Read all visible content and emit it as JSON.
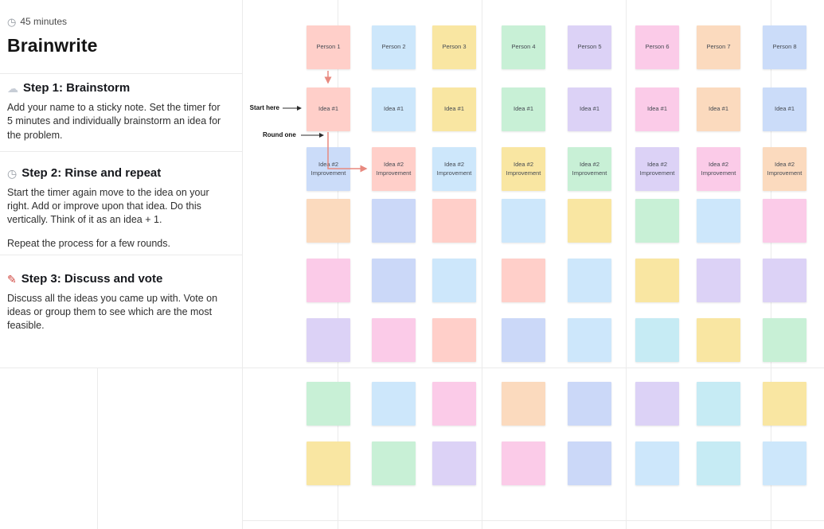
{
  "panel": {
    "duration_icon": "◷",
    "duration_label": "45 minutes",
    "title": "Brainwrite",
    "steps": [
      {
        "icon": "☁",
        "heading": "Step 1: Brainstorm",
        "paragraphs": [
          "Add your name to a sticky note. Set the timer for 5 minutes and individually brainstorm an idea for the problem."
        ]
      },
      {
        "icon": "◷",
        "heading": "Step 2: Rinse and repeat",
        "paragraphs": [
          "Start the timer again move to the idea on your right. Add or improve upon that idea. Do this vertically. Think of it as an idea + 1.",
          "Repeat the process for a few rounds."
        ]
      },
      {
        "icon": "✎",
        "heading": "Step 3: Discuss and vote",
        "paragraphs": [
          "Discuss all the ideas you came up with. Vote on ideas or group them to see which are the most feasible."
        ]
      }
    ]
  },
  "canvas": {
    "annotations": {
      "start_here": "Start here",
      "round_one": "Round one"
    },
    "arrow_color": "#E8897F",
    "palette": {
      "salmon": "#FFCFC9",
      "sky": "#CDE7FB",
      "blue2": "#CBDCF9",
      "yellow": "#F9E6A2",
      "mint": "#C8F0D6",
      "lavender": "#DCD2F6",
      "pink": "#FBCBE8",
      "peach": "#FBDABE",
      "periwinkle": "#CBD8F8",
      "cyan": "#C6EBF4"
    },
    "rows": [
      {
        "name": "persons",
        "stickies": [
          {
            "label": "Person 1",
            "color": "salmon"
          },
          {
            "label": "Person 2",
            "color": "sky"
          },
          {
            "label": "Person 3",
            "color": "yellow"
          },
          {
            "label": "Person 4",
            "color": "mint"
          },
          {
            "label": "Person 5",
            "color": "lavender"
          },
          {
            "label": "Person 6",
            "color": "pink"
          },
          {
            "label": "Person 7",
            "color": "peach"
          },
          {
            "label": "Person 8",
            "color": "blue2"
          }
        ]
      },
      {
        "name": "idea-1",
        "stickies": [
          {
            "label": "Idea #1",
            "color": "salmon"
          },
          {
            "label": "Idea #1",
            "color": "sky"
          },
          {
            "label": "Idea #1",
            "color": "yellow"
          },
          {
            "label": "Idea #1",
            "color": "mint"
          },
          {
            "label": "Idea #1",
            "color": "lavender"
          },
          {
            "label": "Idea #1",
            "color": "pink"
          },
          {
            "label": "Idea #1",
            "color": "peach"
          },
          {
            "label": "Idea #1",
            "color": "blue2"
          }
        ]
      },
      {
        "name": "idea-2",
        "stickies": [
          {
            "label": "Idea #2\nImprovement",
            "color": "blue2"
          },
          {
            "label": "Idea #2\nImprovement",
            "color": "salmon"
          },
          {
            "label": "Idea #2\nImprovement",
            "color": "sky"
          },
          {
            "label": "Idea #2\nImprovement",
            "color": "yellow"
          },
          {
            "label": "Idea #2\nImprovement",
            "color": "mint"
          },
          {
            "label": "Idea #2\nImprovement",
            "color": "lavender"
          },
          {
            "label": "Idea #2\nImprovement",
            "color": "pink"
          },
          {
            "label": "Idea #2\nImprovement",
            "color": "peach"
          }
        ]
      },
      {
        "name": "blank-1",
        "stickies": [
          {
            "label": "",
            "color": "peach"
          },
          {
            "label": "",
            "color": "periwinkle"
          },
          {
            "label": "",
            "color": "salmon"
          },
          {
            "label": "",
            "color": "sky"
          },
          {
            "label": "",
            "color": "yellow"
          },
          {
            "label": "",
            "color": "mint"
          },
          {
            "label": "",
            "color": "sky"
          },
          {
            "label": "",
            "color": "pink"
          }
        ]
      },
      {
        "name": "blank-2",
        "stickies": [
          {
            "label": "",
            "color": "pink"
          },
          {
            "label": "",
            "color": "periwinkle"
          },
          {
            "label": "",
            "color": "sky"
          },
          {
            "label": "",
            "color": "salmon"
          },
          {
            "label": "",
            "color": "sky"
          },
          {
            "label": "",
            "color": "yellow"
          },
          {
            "label": "",
            "color": "lavender"
          },
          {
            "label": "",
            "color": "lavender"
          }
        ]
      },
      {
        "name": "blank-3",
        "stickies": [
          {
            "label": "",
            "color": "lavender"
          },
          {
            "label": "",
            "color": "pink"
          },
          {
            "label": "",
            "color": "salmon"
          },
          {
            "label": "",
            "color": "periwinkle"
          },
          {
            "label": "",
            "color": "sky"
          },
          {
            "label": "",
            "color": "cyan"
          },
          {
            "label": "",
            "color": "yellow"
          },
          {
            "label": "",
            "color": "mint"
          }
        ]
      },
      {
        "name": "blank-4",
        "stickies": [
          {
            "label": "",
            "color": "mint"
          },
          {
            "label": "",
            "color": "sky"
          },
          {
            "label": "",
            "color": "pink"
          },
          {
            "label": "",
            "color": "peach"
          },
          {
            "label": "",
            "color": "periwinkle"
          },
          {
            "label": "",
            "color": "lavender"
          },
          {
            "label": "",
            "color": "cyan"
          },
          {
            "label": "",
            "color": "yellow"
          }
        ]
      },
      {
        "name": "blank-5",
        "stickies": [
          {
            "label": "",
            "color": "yellow"
          },
          {
            "label": "",
            "color": "mint"
          },
          {
            "label": "",
            "color": "lavender"
          },
          {
            "label": "",
            "color": "pink"
          },
          {
            "label": "",
            "color": "periwinkle"
          },
          {
            "label": "",
            "color": "sky"
          },
          {
            "label": "",
            "color": "cyan"
          },
          {
            "label": "",
            "color": "sky"
          }
        ]
      }
    ]
  }
}
